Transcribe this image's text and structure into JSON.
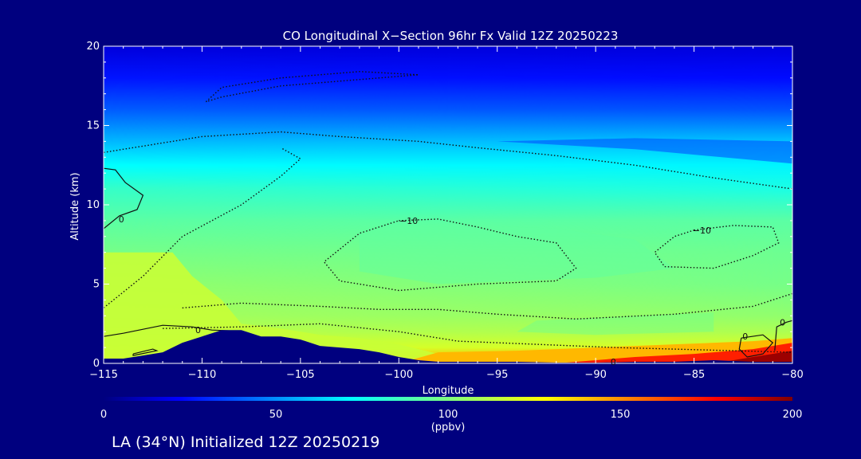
{
  "chart_data": {
    "type": "heatmap",
    "title": "CO Longitudinal X−Section 96hr  Fx Valid 12Z 20250223",
    "subtitle": "LA (34°N) Initialized 12Z 20250219",
    "xlabel": "Longitude",
    "ylabel": "Altitude (km)",
    "xlim": [
      -115,
      -80
    ],
    "ylim": [
      0,
      20
    ],
    "x_ticks": [
      -115,
      -110,
      -105,
      -100,
      -95,
      -90,
      -85,
      -80
    ],
    "x_tick_labels": [
      "−115",
      "−110",
      "−105",
      "−100",
      "−95",
      "−90",
      "−85",
      "−80"
    ],
    "y_ticks": [
      0,
      5,
      10,
      15,
      20
    ],
    "y_tick_labels": [
      "0",
      "5",
      "10",
      "15",
      "20"
    ],
    "colorbar": {
      "min": 0,
      "max": 200,
      "ticks": [
        0,
        50,
        100,
        150,
        200
      ],
      "tick_labels": [
        "0",
        "50",
        "100",
        "150",
        "200"
      ],
      "unit_label": "(ppbv)"
    },
    "contour_labels": [
      {
        "text": "−10",
        "x": -99.5,
        "y": 9.0
      },
      {
        "text": "−10",
        "x": -84.6,
        "y": 8.4
      },
      {
        "text": "0",
        "x": -114.1,
        "y": 9.1
      },
      {
        "text": "0",
        "x": -110.2,
        "y": 2.1
      },
      {
        "text": "0",
        "x": -89.1,
        "y": 0.1
      },
      {
        "text": "0",
        "x": -82.4,
        "y": 1.7
      },
      {
        "text": "0",
        "x": -80.5,
        "y": 2.6
      }
    ],
    "concentration_profile": {
      "altitude_km": [
        0,
        0.5,
        1,
        2,
        3,
        5,
        7,
        9,
        11,
        12.5,
        14,
        16,
        18,
        20
      ],
      "co_ppbv_west": [
        130,
        122,
        118,
        112,
        108,
        104,
        98,
        92,
        84,
        72,
        58,
        40,
        26,
        16
      ],
      "co_ppbv_east": [
        175,
        148,
        120,
        110,
        104,
        98,
        96,
        92,
        78,
        70,
        60,
        38,
        24,
        16
      ]
    },
    "terrain_km": {
      "longitude": [
        -115,
        -114,
        -113,
        -112,
        -111,
        -110,
        -109,
        -108,
        -107,
        -106,
        -105,
        -104,
        -103,
        -102,
        -101,
        -100,
        -99,
        -98,
        -96,
        -94,
        -92,
        -90,
        -88,
        -86,
        -84,
        -82,
        -80
      ],
      "altitude": [
        0.3,
        0.3,
        0.5,
        0.7,
        1.3,
        1.7,
        2.1,
        2.1,
        1.7,
        1.7,
        1.5,
        1.1,
        1.0,
        0.9,
        0.7,
        0.4,
        0.2,
        0.1,
        0.1,
        0.1,
        0.05,
        0.05,
        0.1,
        0.1,
        0.2,
        0.1,
        0.1
      ]
    }
  }
}
